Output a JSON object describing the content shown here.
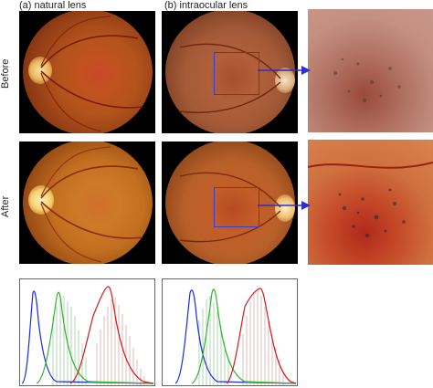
{
  "columns": {
    "natural": "(a) natural lens",
    "intraocular": "(b) intraocular lens"
  },
  "rows": {
    "before": "Before",
    "after": "After"
  },
  "colors": {
    "roi_box": "#3a3fc8",
    "arrow": "#2a2fd0",
    "hist_red": "#d21a1a",
    "hist_green": "#2fb52f",
    "hist_blue": "#1a2adf"
  }
}
